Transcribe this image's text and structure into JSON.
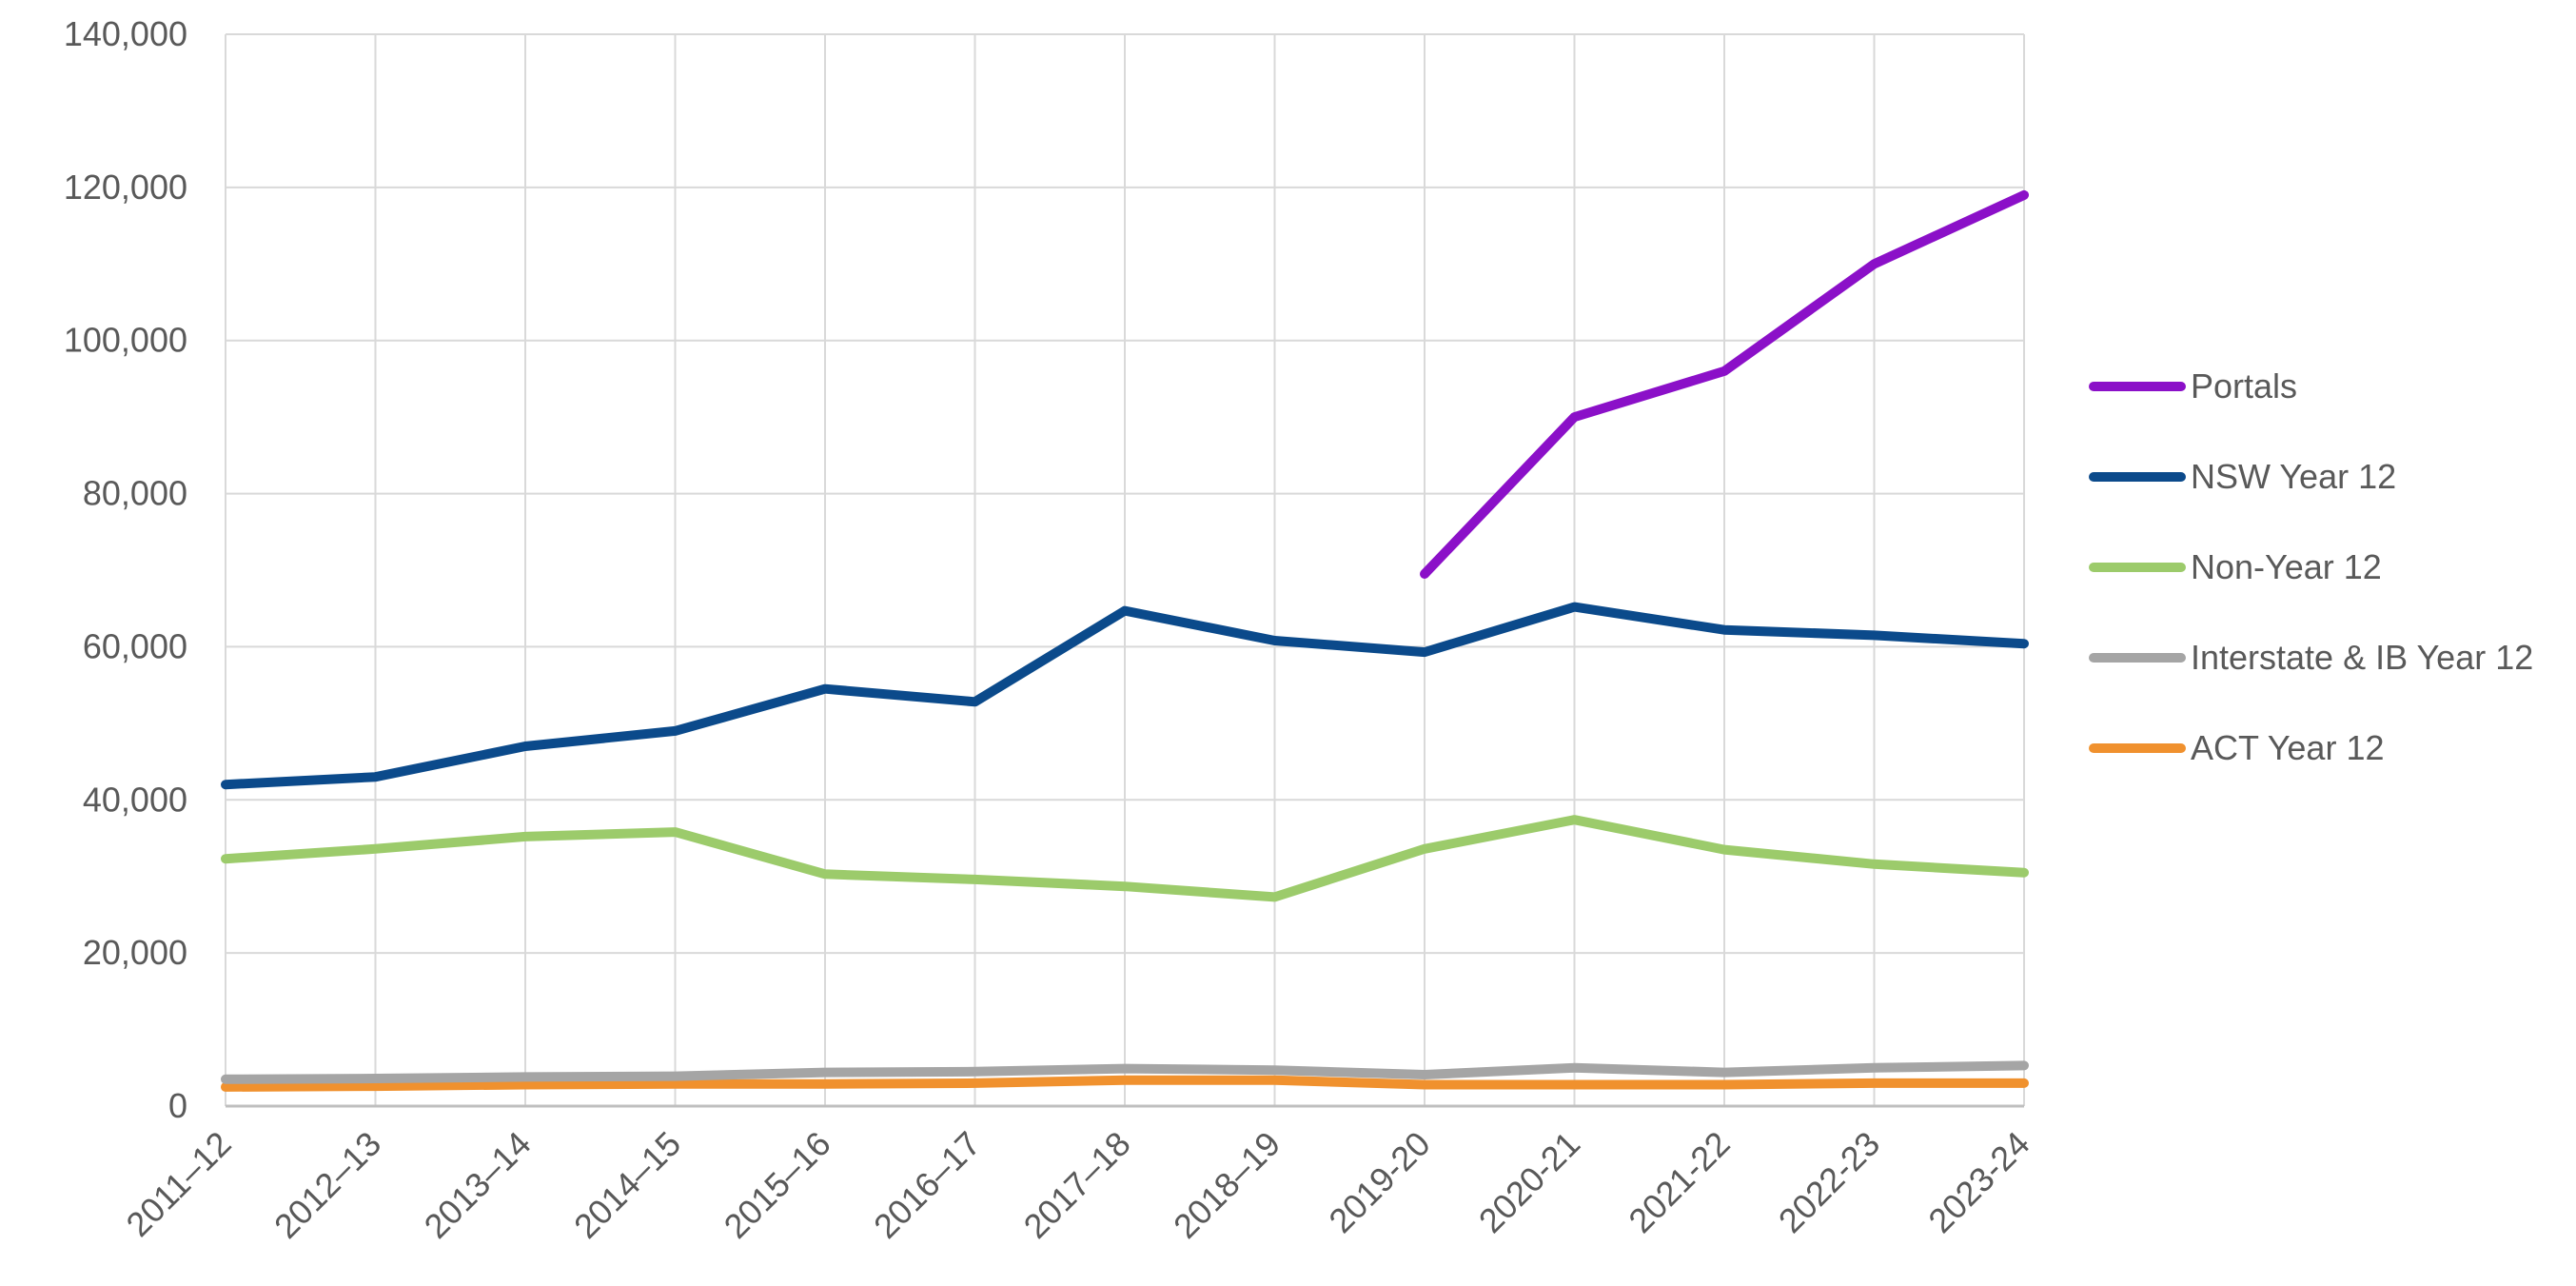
{
  "chart_data": {
    "type": "line",
    "title": "",
    "xlabel": "",
    "ylabel": "",
    "categories": [
      "2011–12",
      "2012–13",
      "2013–14",
      "2014–15",
      "2015–16",
      "2016–17",
      "2017–18",
      "2018–19",
      "2019-20",
      "2020-21",
      "2021-22",
      "2022-23",
      "2023-24"
    ],
    "ylim": [
      0,
      140000
    ],
    "yticks": [
      0,
      20000,
      40000,
      60000,
      80000,
      100000,
      120000,
      140000
    ],
    "ytick_labels": [
      "0",
      "20,000",
      "40,000",
      "60,000",
      "80,000",
      "100,000",
      "120,000",
      "140,000"
    ],
    "grid": true,
    "legend_position": "right",
    "series": [
      {
        "name": "Portals",
        "color": "#8B10C8",
        "values": [
          null,
          null,
          null,
          null,
          null,
          null,
          null,
          null,
          69500,
          90000,
          96000,
          110000,
          119000
        ]
      },
      {
        "name": "NSW Year 12",
        "color": "#0B4A8B",
        "values": [
          42000,
          43000,
          47000,
          49000,
          54500,
          52800,
          64700,
          60800,
          59300,
          65200,
          62200,
          61500,
          60400
        ]
      },
      {
        "name": "Non-Year 12",
        "color": "#9CCB6B",
        "values": [
          32300,
          33600,
          35200,
          35800,
          30300,
          29600,
          28700,
          27300,
          33600,
          37400,
          33500,
          31600,
          30500
        ]
      },
      {
        "name": "Interstate & IB Year 12",
        "color": "#A5A5A5",
        "values": [
          3500,
          3600,
          3800,
          3900,
          4400,
          4500,
          4900,
          4700,
          4100,
          5000,
          4400,
          5000,
          5300
        ]
      },
      {
        "name": "ACT Year 12",
        "color": "#F0912E",
        "values": [
          2500,
          2600,
          2800,
          2900,
          2900,
          3000,
          3400,
          3400,
          2800,
          2800,
          2800,
          3000,
          3000
        ]
      }
    ]
  }
}
